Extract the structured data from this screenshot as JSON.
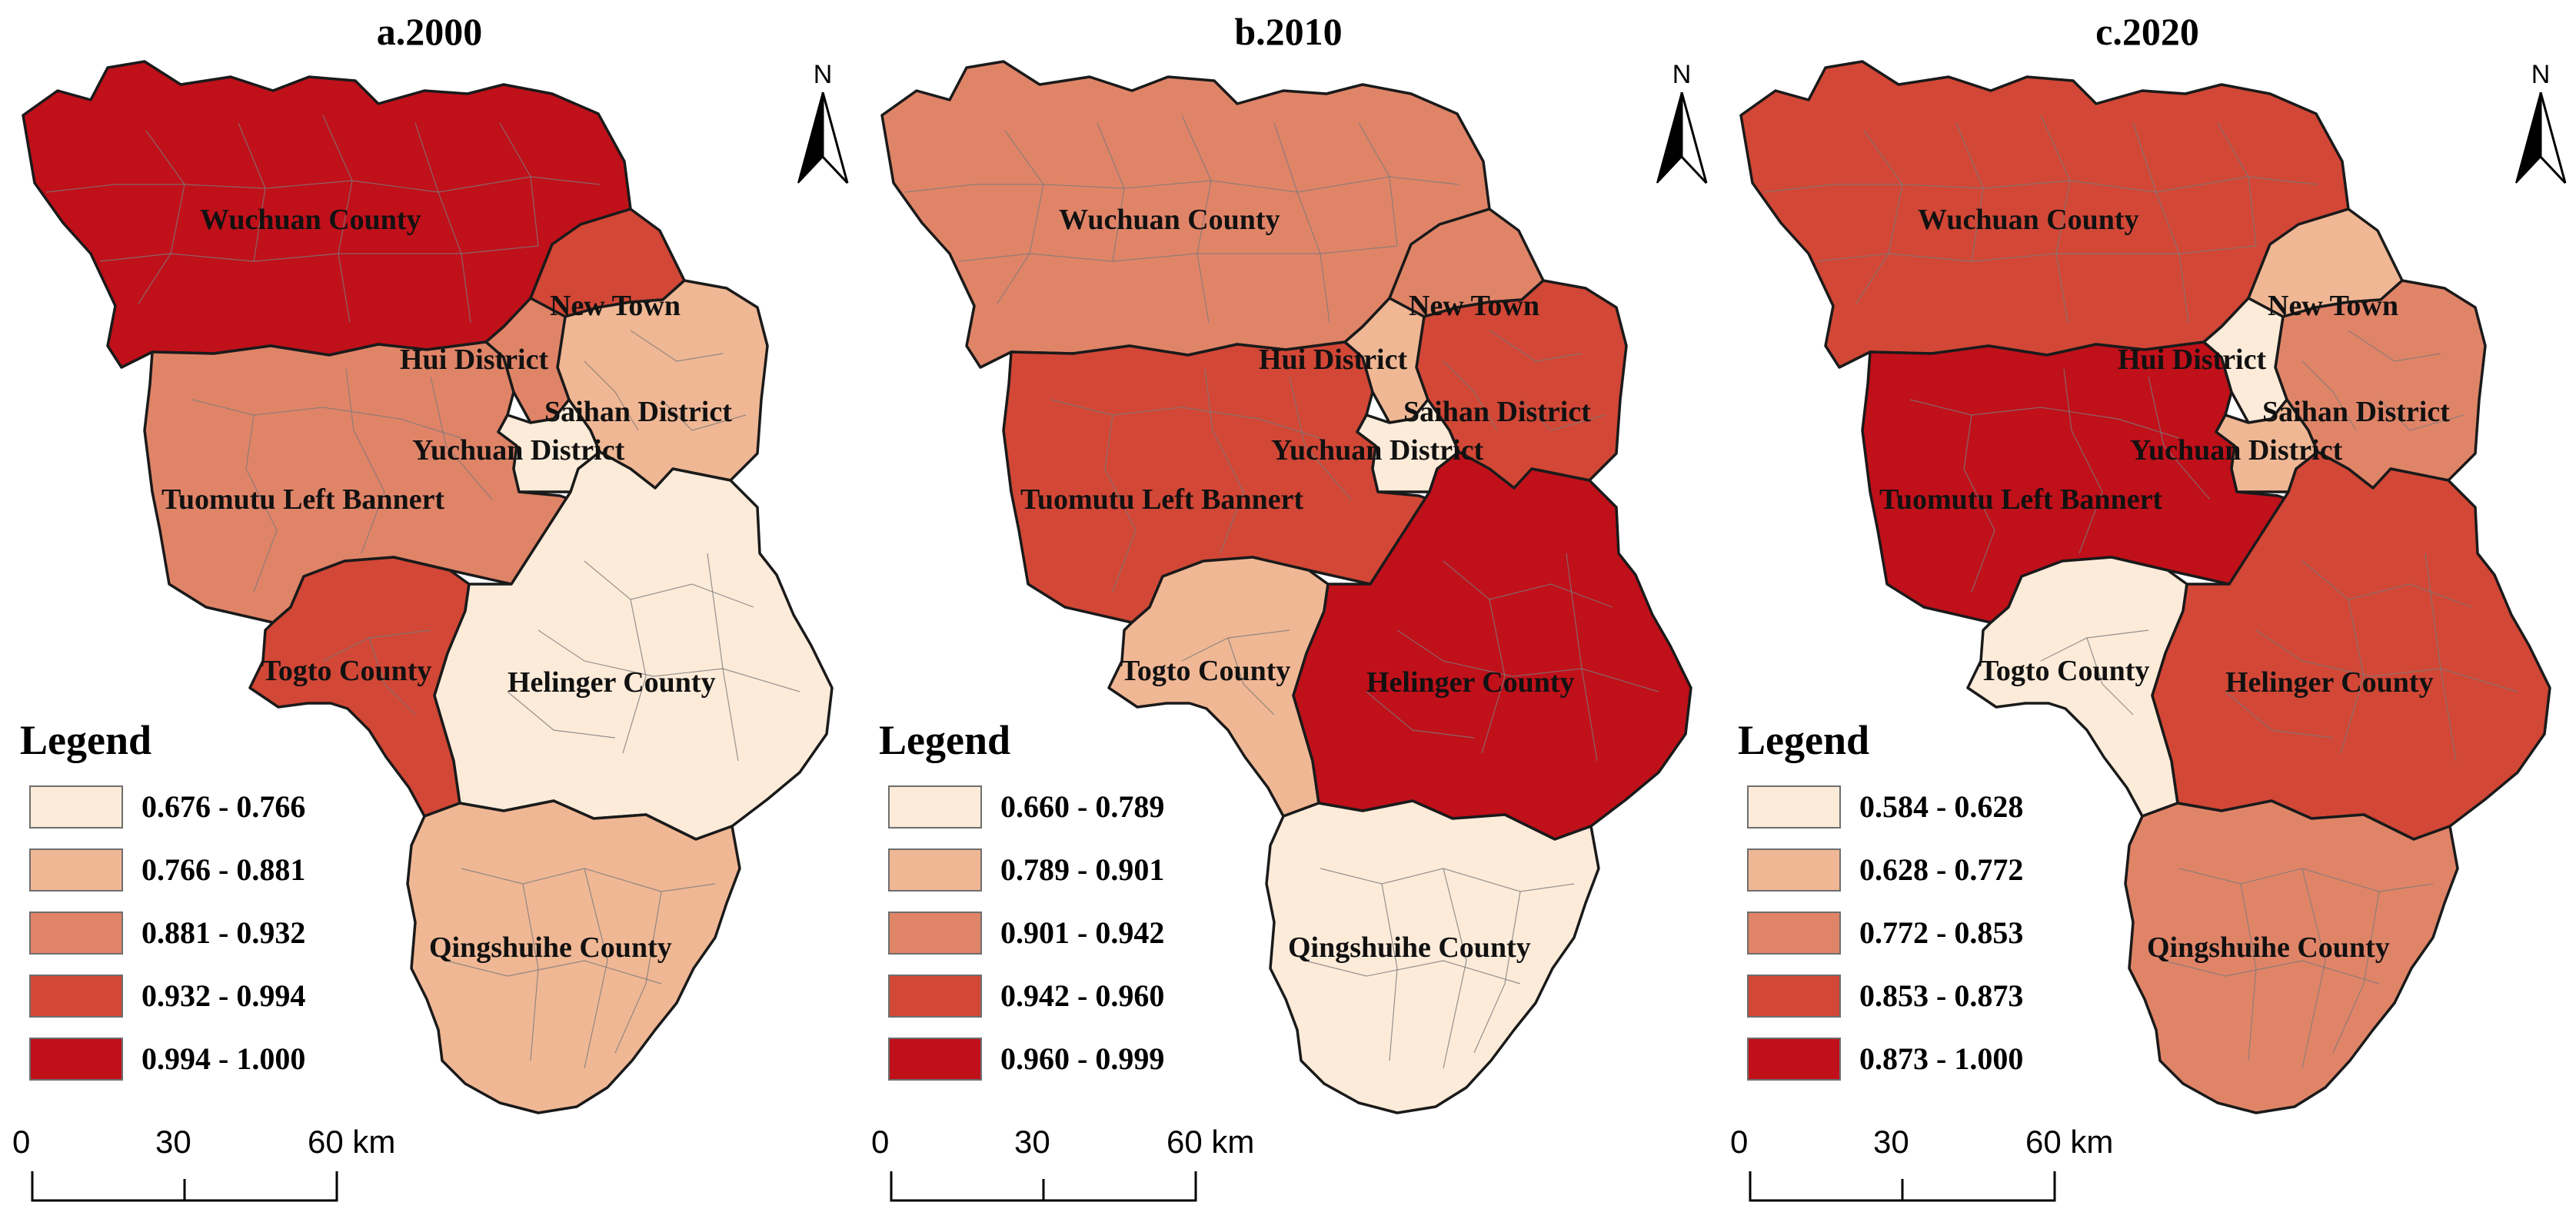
{
  "palette": [
    "#fdebd9",
    "#f0b795",
    "#e08468",
    "#d24736",
    "#c0101a"
  ],
  "units": "km",
  "legend_title": "Legend",
  "region_names": {
    "wuchuan": "Wuchuan County",
    "newtown": "New Town",
    "hui": "Hui District",
    "saihan": "Saihan District",
    "yuchuan": "Yuchuan District",
    "tuomutu": "Tuomutu Left Bannert",
    "togto": "Togto County",
    "helinger": "Helinger County",
    "qingshuihe": "Qingshuihe County"
  },
  "panels": [
    {
      "title": "a.2000",
      "north_label": "N",
      "scale": {
        "ticks": [
          "0",
          "30",
          "60"
        ],
        "unit": "km"
      },
      "legend": [
        "0.676 - 0.766",
        "0.766 - 0.881",
        "0.881 - 0.932",
        "0.932 - 0.994",
        "0.994 - 1.000"
      ],
      "classes": {
        "wuchuan": 4,
        "newtown": 3,
        "hui": 2,
        "saihan": 1,
        "yuchuan": 0,
        "tuomutu": 2,
        "togto": 3,
        "helinger": 0,
        "qingshuihe": 1
      }
    },
    {
      "title": "b.2010",
      "north_label": "N",
      "scale": {
        "ticks": [
          "0",
          "30",
          "60"
        ],
        "unit": "km"
      },
      "legend": [
        "0.660 - 0.789",
        "0.789 - 0.901",
        "0.901 - 0.942",
        "0.942 - 0.960",
        "0.960 - 0.999"
      ],
      "classes": {
        "wuchuan": 2,
        "newtown": 2,
        "hui": 1,
        "saihan": 3,
        "yuchuan": 0,
        "tuomutu": 3,
        "togto": 1,
        "helinger": 4,
        "qingshuihe": 0
      }
    },
    {
      "title": "c.2020",
      "north_label": "N",
      "scale": {
        "ticks": [
          "0",
          "30",
          "60"
        ],
        "unit": "km"
      },
      "legend": [
        "0.584 - 0.628",
        "0.628 - 0.772",
        "0.772 - 0.853",
        "0.853 - 0.873",
        "0.873 - 1.000"
      ],
      "classes": {
        "wuchuan": 3,
        "newtown": 1,
        "hui": 0,
        "saihan": 2,
        "yuchuan": 1,
        "tuomutu": 4,
        "togto": 0,
        "helinger": 3,
        "qingshuihe": 2
      }
    }
  ]
}
